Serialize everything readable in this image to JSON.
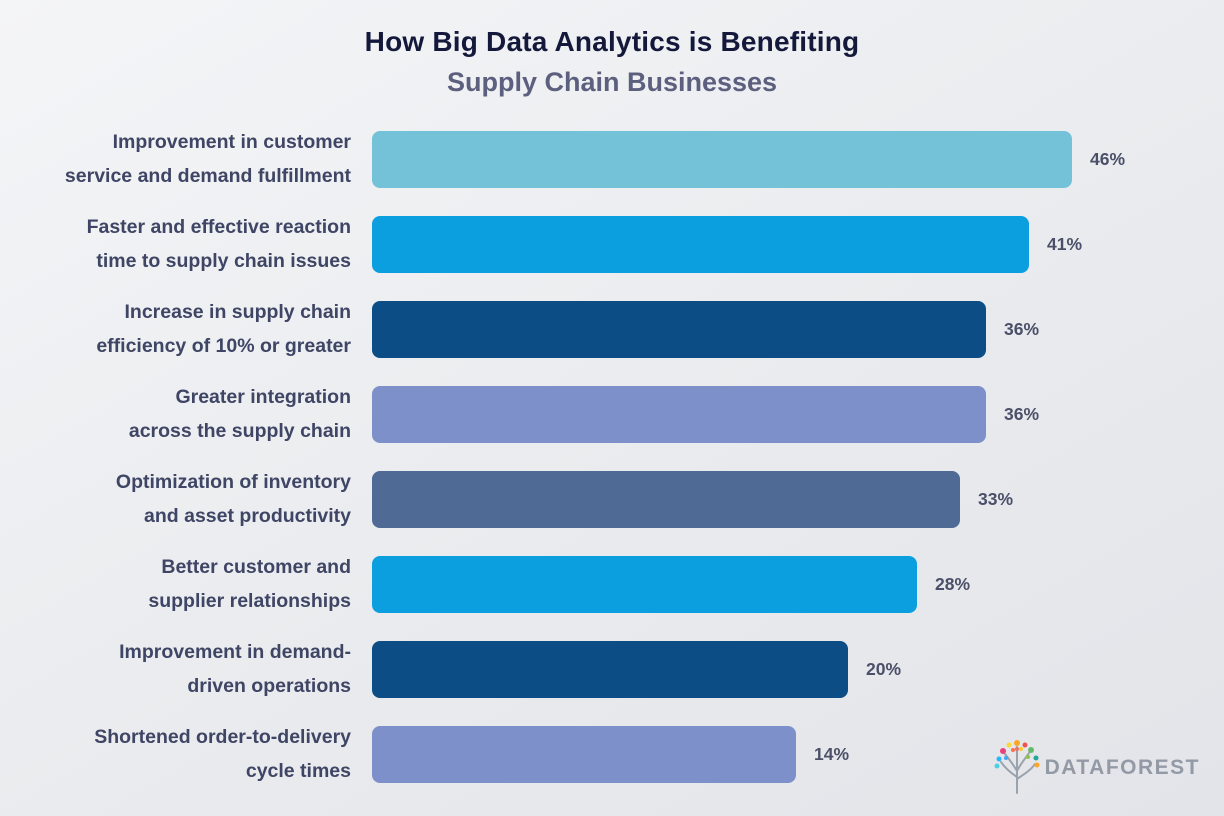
{
  "title": {
    "line1": "How Big Data Analytics is Benefiting",
    "line2": "Supply Chain Businesses"
  },
  "chart_data": {
    "type": "bar",
    "orientation": "horizontal",
    "title": "How Big Data Analytics is Benefiting Supply Chain Businesses",
    "value_suffix": "%",
    "xlim": [
      0,
      50
    ],
    "grid": false,
    "legend": "none",
    "categories": [
      "Improvement in customer service and demand fulfillment",
      "Faster and effective reaction time to supply chain issues",
      "Increase in supply chain efficiency of 10% or greater",
      "Greater integration across the supply chain",
      "Optimization of inventory and asset productivity",
      "Better customer and supplier relationships",
      "Improvement in demand-driven operations",
      "Shortened order-to-delivery cycle times"
    ],
    "values": [
      46,
      41,
      36,
      36,
      33,
      28,
      20,
      14
    ],
    "rows": [
      {
        "label_lines": [
          "Improvement in customer",
          "service and demand fulfillment"
        ],
        "value": 46,
        "display": "46%",
        "color": "#74c2d8"
      },
      {
        "label_lines": [
          "Faster and effective reaction",
          "time to supply chain issues"
        ],
        "value": 41,
        "display": "41%",
        "color": "#0c9fe0"
      },
      {
        "label_lines": [
          "Increase in supply chain",
          "efficiency of 10% or greater"
        ],
        "value": 36,
        "display": "36%",
        "color": "#0c4d85"
      },
      {
        "label_lines": [
          "Greater integration",
          "across the supply chain"
        ],
        "value": 36,
        "display": "36%",
        "color": "#7e90ca"
      },
      {
        "label_lines": [
          "Optimization of inventory",
          "and asset productivity"
        ],
        "value": 33,
        "display": "33%",
        "color": "#4f6a94"
      },
      {
        "label_lines": [
          "Better customer and",
          "supplier relationships"
        ],
        "value": 28,
        "display": "28%",
        "color": "#0c9fe0"
      },
      {
        "label_lines": [
          "Improvement in demand-",
          "driven operations"
        ],
        "value": 20,
        "display": "20%",
        "color": "#0c4d85"
      },
      {
        "label_lines": [
          "Shortened order-to-delivery",
          "cycle times"
        ],
        "value": 14,
        "display": "14%",
        "color": "#7e90ca"
      }
    ]
  },
  "logo": {
    "text": "DATAFOREST",
    "text_color": "#949aa5",
    "dot_colors": [
      "#f9a825",
      "#fdd835",
      "#ef5350",
      "#ec407a",
      "#66bb6a",
      "#29b6f6",
      "#26a69a",
      "#ff7043",
      "#ffca28",
      "#42a5f5",
      "#8bc34a",
      "#e57373",
      "#ffa726",
      "#4dd0e1"
    ]
  }
}
